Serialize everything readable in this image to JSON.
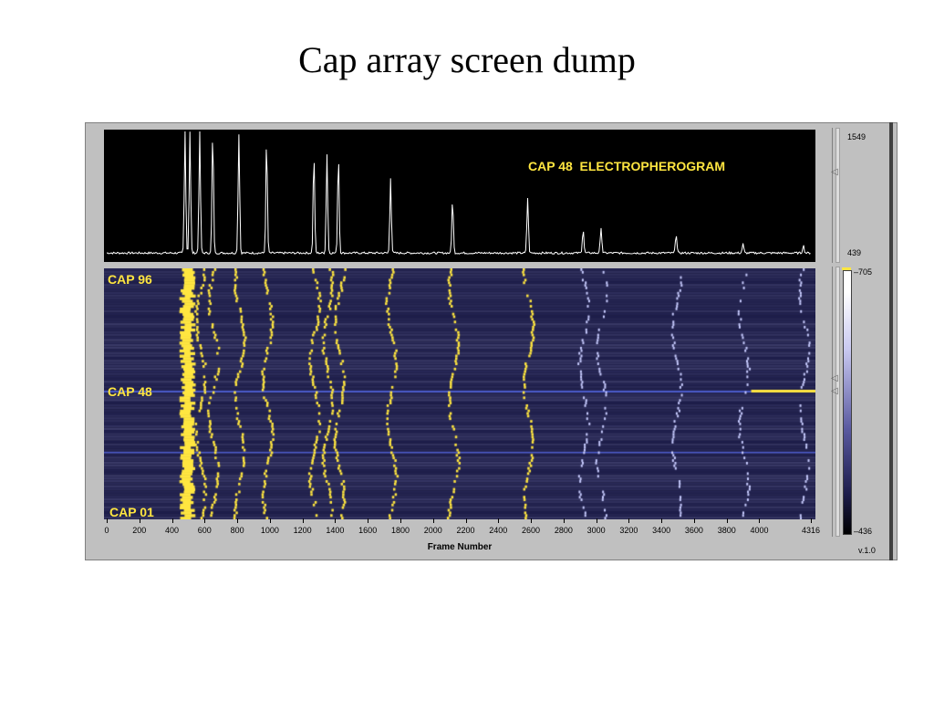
{
  "slide": {
    "title": "Cap array screen dump"
  },
  "electropherogram": {
    "title": "CAP 48  ELECTROPHEROGRAM",
    "scale_max": "1549",
    "scale_min": "439"
  },
  "capillary_image": {
    "labels": {
      "top": "CAP 96",
      "middle": "CAP 48",
      "bottom": "CAP 01"
    },
    "colorbar": {
      "max": "705",
      "min": "436"
    }
  },
  "x_axis": {
    "label": "Frame Number",
    "ticks": [
      "0",
      "200",
      "400",
      "600",
      "800",
      "1000",
      "1200",
      "1400",
      "1600",
      "1800",
      "2000",
      "2200",
      "2400",
      "2600",
      "2800",
      "3000",
      "3200",
      "3400",
      "3600",
      "3800",
      "4000",
      "4316"
    ],
    "tick_values": [
      0,
      200,
      400,
      600,
      800,
      1000,
      1200,
      1400,
      1600,
      1800,
      2000,
      2200,
      2400,
      2600,
      2800,
      3000,
      3200,
      3400,
      3600,
      3800,
      4000,
      4316
    ],
    "range": [
      0,
      4316
    ]
  },
  "chart_data": {
    "type": "line",
    "title": "CAP 48  ELECTROPHEROGRAM",
    "xlabel": "Frame Number",
    "xlim": [
      0,
      4316
    ],
    "ylim": [
      439,
      1549
    ],
    "peaks_frame": [
      480,
      510,
      570,
      650,
      810,
      980,
      1270,
      1350,
      1420,
      1740,
      2120,
      2580,
      2920,
      3030,
      3490,
      3900,
      4270
    ],
    "peaks_height": [
      1549,
      1549,
      1549,
      1540,
      1530,
      1470,
      1350,
      1350,
      1340,
      1140,
      950,
      960,
      680,
      700,
      640,
      550,
      540
    ]
  },
  "colors": {
    "yellow": "#ffe640",
    "image_bg": "#1e1e46",
    "trace": "#ffffff"
  },
  "version": "v.1.0"
}
